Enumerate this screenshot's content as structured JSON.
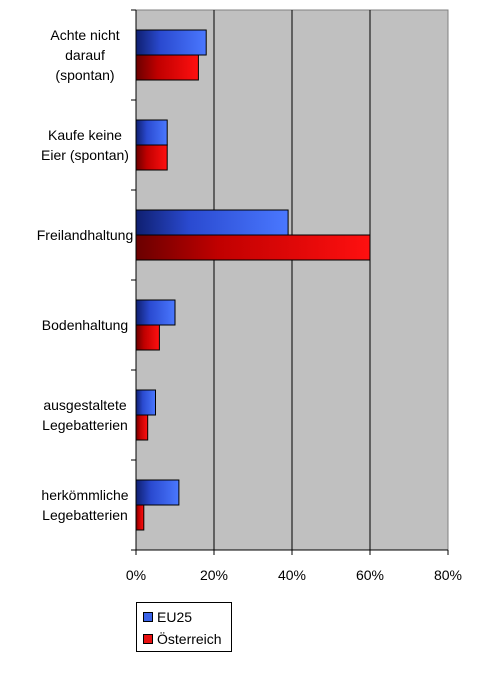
{
  "chart_data": {
    "type": "bar",
    "orientation": "horizontal",
    "categories": [
      [
        "Achte nicht",
        "darauf",
        "(spontan)"
      ],
      [
        "Kaufe keine",
        "Eier (spontan)"
      ],
      [
        "Freilandhaltung"
      ],
      [
        "Bodenhaltung"
      ],
      [
        "ausgestaltete",
        "Legebatterien"
      ],
      [
        "herkömmliche",
        "Legebatterien"
      ]
    ],
    "series": [
      {
        "name": "EU25",
        "values": [
          18,
          8,
          39,
          10,
          5,
          11
        ],
        "color": "#3a63e8"
      },
      {
        "name": "Österreich",
        "values": [
          16,
          8,
          60,
          6,
          3,
          2
        ],
        "color": "#e81010"
      }
    ],
    "xlim": [
      0,
      80
    ],
    "xticks": [
      "0%",
      "20%",
      "40%",
      "60%",
      "80%"
    ],
    "plot_background": "#c0c0c0",
    "grid": true,
    "legend_position": "bottom-left",
    "title": "",
    "xlabel": "",
    "ylabel": ""
  }
}
